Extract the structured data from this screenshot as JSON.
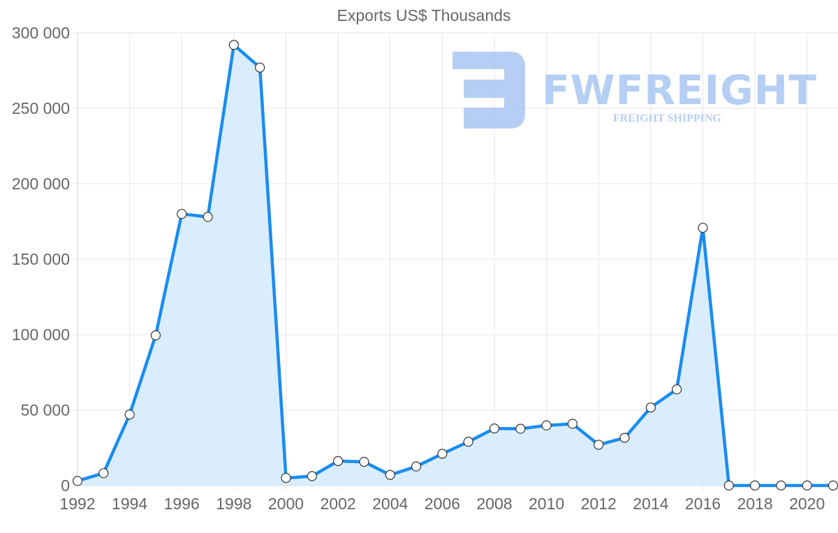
{
  "chart_data": {
    "type": "area",
    "title": "Exports US$ Thousands",
    "xlabel": "",
    "ylabel": "",
    "x": [
      1992,
      1993,
      1994,
      1995,
      1996,
      1997,
      1998,
      1999,
      2000,
      2001,
      2002,
      2003,
      2004,
      2005,
      2006,
      2007,
      2008,
      2009,
      2010,
      2011,
      2012,
      2013,
      2014,
      2015,
      2016,
      2017,
      2018,
      2019,
      2020,
      2021
    ],
    "series": [
      {
        "name": "Exports US$ Thousands",
        "values": [
          3000,
          8200,
          47000,
          99500,
          180000,
          178000,
          292000,
          277000,
          5000,
          6200,
          16200,
          15700,
          7000,
          12600,
          21000,
          29000,
          37800,
          37600,
          39800,
          40900,
          27000,
          31600,
          51700,
          63700,
          170800,
          0,
          0,
          0,
          0,
          0
        ]
      }
    ],
    "ylim": [
      0,
      300000
    ],
    "y_ticks": [
      0,
      50000,
      100000,
      150000,
      200000,
      250000,
      300000
    ],
    "y_tick_labels": [
      "0",
      "50 000",
      "100 000",
      "150 000",
      "200 000",
      "250 000",
      "300 000"
    ],
    "x_tick_labels": [
      "1992",
      "1994",
      "1996",
      "1998",
      "2000",
      "2002",
      "2004",
      "2006",
      "2008",
      "2010",
      "2012",
      "2014",
      "2016",
      "2018",
      "2020"
    ],
    "grid": true,
    "legend": "none",
    "colors": {
      "line": "#1a8cf0",
      "fill": "#d6ebfc",
      "marker_fill": "#ffffff",
      "marker_stroke": "#333333"
    }
  },
  "watermark": {
    "brand": "FWFREIGHT",
    "tagline": "FREIGHT SHIPPING",
    "color": "#a9c6f2"
  }
}
